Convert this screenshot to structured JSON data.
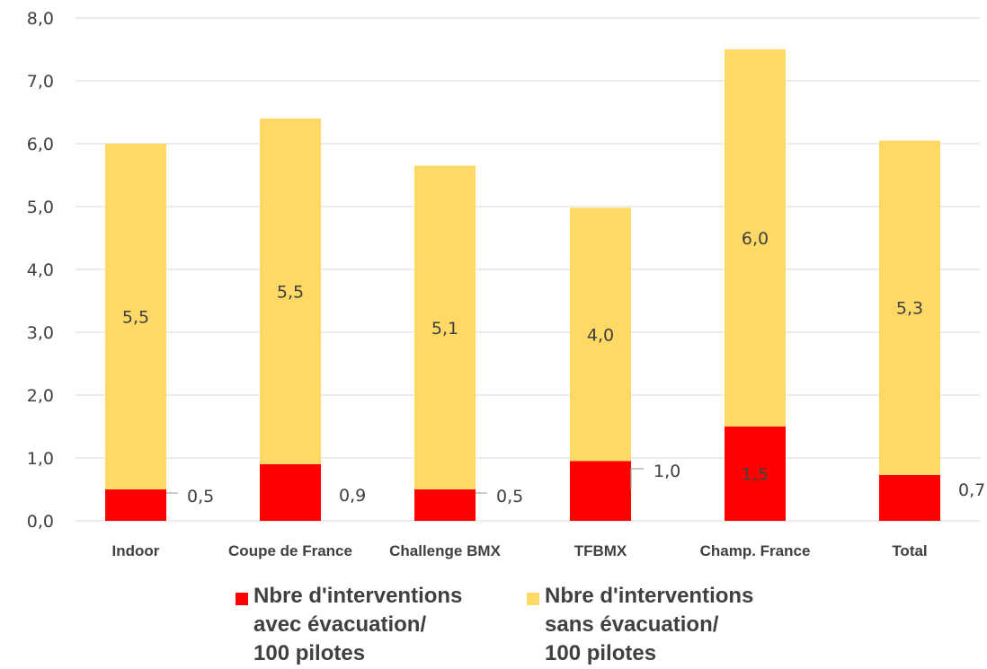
{
  "chart_data": {
    "type": "bar",
    "stacked": true,
    "categories": [
      "Indoor",
      "Coupe de France",
      "Challenge BMX",
      "TFBMX",
      "Champ. France",
      "Total"
    ],
    "series": [
      {
        "name": "Nbre d'interventions avec évacuation/ 100 pilotes",
        "color": "#ff0000",
        "values": [
          0.5,
          0.9,
          0.5,
          0.95,
          1.5,
          0.73
        ],
        "labels": [
          "0,5",
          "0,9",
          "0,5",
          "1,0",
          "1,5",
          "0,7"
        ]
      },
      {
        "name": "Nbre d'interventions sans évacuation/ 100 pilotes",
        "color": "#ffd966",
        "values": [
          5.5,
          5.5,
          5.15,
          4.03,
          6.0,
          5.32
        ],
        "labels": [
          "5,5",
          "5,5",
          "5,1",
          "4,0",
          "6,0",
          "5,3"
        ]
      }
    ],
    "y_ticks": [
      "0,0",
      "1,0",
      "2,0",
      "3,0",
      "4,0",
      "5,0",
      "6,0",
      "7,0",
      "8,0"
    ],
    "ylim": [
      0,
      8
    ],
    "grid": true,
    "legend_position": "bottom",
    "title": "",
    "xlabel": "",
    "ylabel": ""
  },
  "legend": [
    {
      "text": "Nbre d'interventions\navec évacuation/\n100 pilotes",
      "color": "#ff0000"
    },
    {
      "text": "Nbre d'interventions\nsans évacuation/\n100 pilotes",
      "color": "#ffd966"
    }
  ]
}
